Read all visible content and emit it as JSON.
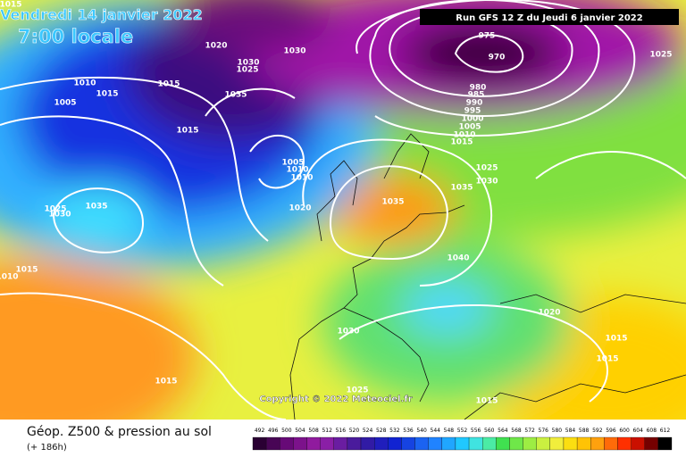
{
  "header": {
    "date": "Vendredi 14 janvier 2022",
    "time": "7:00 locale",
    "run": "Run GFS 12 Z du Jeudi 6 janvier 2022"
  },
  "map": {
    "isobar_labels": [
      1015,
      1020,
      1025,
      1030,
      1030,
      1035,
      1010,
      1015,
      1015,
      1005,
      1015,
      975,
      970,
      980,
      985,
      990,
      995,
      1000,
      1005,
      1010,
      1015,
      1025,
      1025,
      1030,
      1035,
      1035,
      1025,
      1030,
      1035,
      1020,
      1015,
      1010,
      1040,
      1020,
      1030,
      1015,
      1015,
      1015,
      1025,
      1015,
      1005,
      1010,
      1010
    ],
    "copyright": "Copyright © 2022 Meteociel.fr"
  },
  "footer": {
    "title": "Géop. Z500 & pression au sol",
    "subtitle": "(+ 186h)"
  },
  "scale": {
    "ticks": [
      492,
      496,
      500,
      504,
      508,
      512,
      516,
      520,
      524,
      528,
      532,
      536,
      540,
      544,
      548,
      552,
      556,
      560,
      564,
      568,
      572,
      576,
      580,
      584,
      588,
      592,
      596,
      600,
      604,
      608,
      612
    ]
  }
}
